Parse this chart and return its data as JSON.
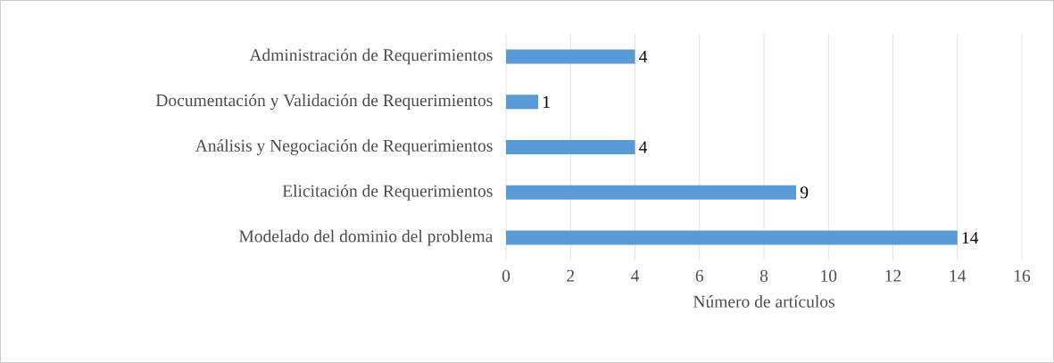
{
  "chart_data": {
    "type": "bar",
    "orientation": "horizontal",
    "xlabel": "Número de artículos",
    "categories": [
      "Administración de Requerimientos",
      "Documentación y Validación de Requerimientos",
      "Análisis y Negociación de Requerimientos",
      "Elicitación de Requerimientos",
      "Modelado del dominio del problema"
    ],
    "values": [
      4,
      1,
      4,
      9,
      14
    ],
    "color": "#5b9bd5",
    "xlim": [
      0,
      16
    ],
    "xticks": [
      0,
      2,
      4,
      6,
      8,
      10,
      12,
      14,
      16
    ],
    "grid": "x",
    "data_labels": true
  }
}
